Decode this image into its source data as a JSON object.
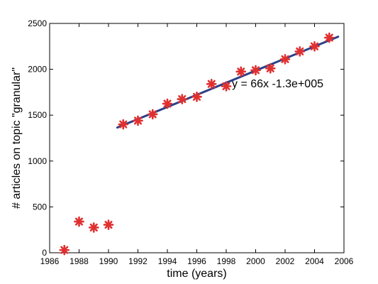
{
  "chart_data": {
    "type": "scatter",
    "title": "",
    "xlabel": "time (years)",
    "ylabel": "# articles on topic \"granular\"",
    "xlim": [
      1986,
      2006
    ],
    "ylim": [
      0,
      2500
    ],
    "xticks": [
      1986,
      1988,
      1990,
      1992,
      1994,
      1996,
      1998,
      2000,
      2002,
      2004,
      2006
    ],
    "yticks": [
      0,
      500,
      1000,
      1500,
      2000,
      2500
    ],
    "grid": false,
    "legend": "none",
    "series": [
      {
        "marker": "asterisk",
        "color": "#e03030",
        "points": [
          [
            1987,
            30
          ],
          [
            1988,
            340
          ],
          [
            1989,
            275
          ],
          [
            1990,
            305
          ],
          [
            1991,
            1400
          ],
          [
            1992,
            1440
          ],
          [
            1993,
            1510
          ],
          [
            1994,
            1625
          ],
          [
            1995,
            1675
          ],
          [
            1996,
            1700
          ],
          [
            1997,
            1840
          ],
          [
            1998,
            1815
          ],
          [
            1999,
            1975
          ],
          [
            2000,
            1990
          ],
          [
            2001,
            2010
          ],
          [
            2002,
            2110
          ],
          [
            2003,
            2195
          ],
          [
            2004,
            2250
          ],
          [
            2005,
            2345
          ]
        ]
      }
    ],
    "fit_line": {
      "color": "#2b3f8a",
      "from": [
        1990.6,
        1365
      ],
      "to": [
        2005.6,
        2355
      ]
    },
    "annotation": "y = 66x -1.3e+005"
  }
}
